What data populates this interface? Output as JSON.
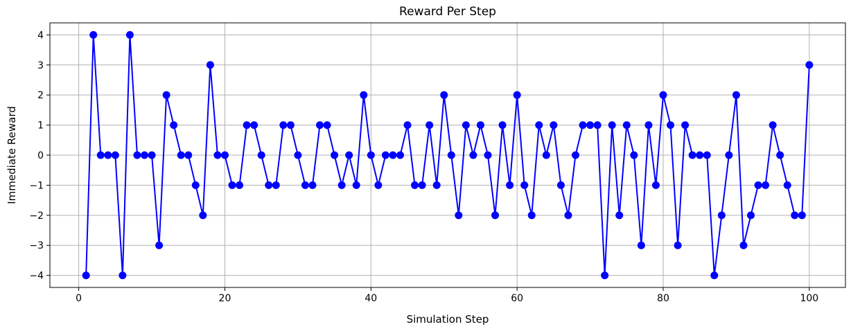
{
  "chart_data": {
    "type": "line",
    "title": "Reward Per Step",
    "xlabel": "Simulation Step",
    "ylabel": "Immediate Reward",
    "xlim": [
      -3.95,
      104.95
    ],
    "ylim": [
      -4.4,
      4.4
    ],
    "xticks": [
      0,
      20,
      40,
      60,
      80,
      100
    ],
    "yticks": [
      -4,
      -3,
      -2,
      -1,
      0,
      1,
      2,
      3,
      4
    ],
    "grid": true,
    "marker": "circle",
    "color": "#0000ff",
    "series": [
      {
        "x": [
          1,
          2,
          3,
          4,
          5,
          6,
          7,
          8,
          9,
          10,
          11,
          12,
          13,
          14,
          15,
          16,
          17,
          18,
          19,
          20,
          21,
          22,
          23,
          24,
          25,
          26,
          27,
          28,
          29,
          30,
          31,
          32,
          33,
          34,
          35,
          36,
          37,
          38,
          39,
          40,
          41,
          42,
          43,
          44,
          45,
          46,
          47,
          48,
          49,
          50,
          51,
          52,
          53,
          54,
          55,
          56,
          57,
          58,
          59,
          60,
          61,
          62,
          63,
          64,
          65,
          66,
          67,
          68,
          69,
          70,
          71,
          72,
          73,
          74,
          75,
          76,
          77,
          78,
          79,
          80,
          81,
          82,
          83,
          84,
          85,
          86,
          87,
          88,
          89,
          90,
          91,
          92,
          93,
          94,
          95,
          96,
          97,
          98,
          99,
          100
        ],
        "values": [
          -4,
          4,
          0,
          0,
          0,
          -4,
          4,
          0,
          0,
          0,
          -3,
          2,
          1,
          0,
          0,
          -1,
          -2,
          3,
          0,
          0,
          -1,
          -1,
          1,
          1,
          0,
          -1,
          -1,
          1,
          1,
          0,
          -1,
          -1,
          1,
          1,
          0,
          -1,
          0,
          -1,
          2,
          0,
          -1,
          0,
          0,
          0,
          1,
          -1,
          -1,
          1,
          -1,
          2,
          0,
          -2,
          1,
          0,
          1,
          0,
          -2,
          1,
          -1,
          2,
          -1,
          -2,
          1,
          0,
          1,
          -1,
          -2,
          0,
          1,
          1,
          1,
          -4,
          1,
          -2,
          1,
          0,
          -3,
          1,
          -1,
          2,
          1,
          -3,
          1,
          0,
          0,
          0,
          -4,
          -2,
          0,
          2,
          -3,
          -2,
          -1,
          -1,
          1,
          0,
          -1,
          -2,
          -2,
          3
        ]
      }
    ]
  }
}
